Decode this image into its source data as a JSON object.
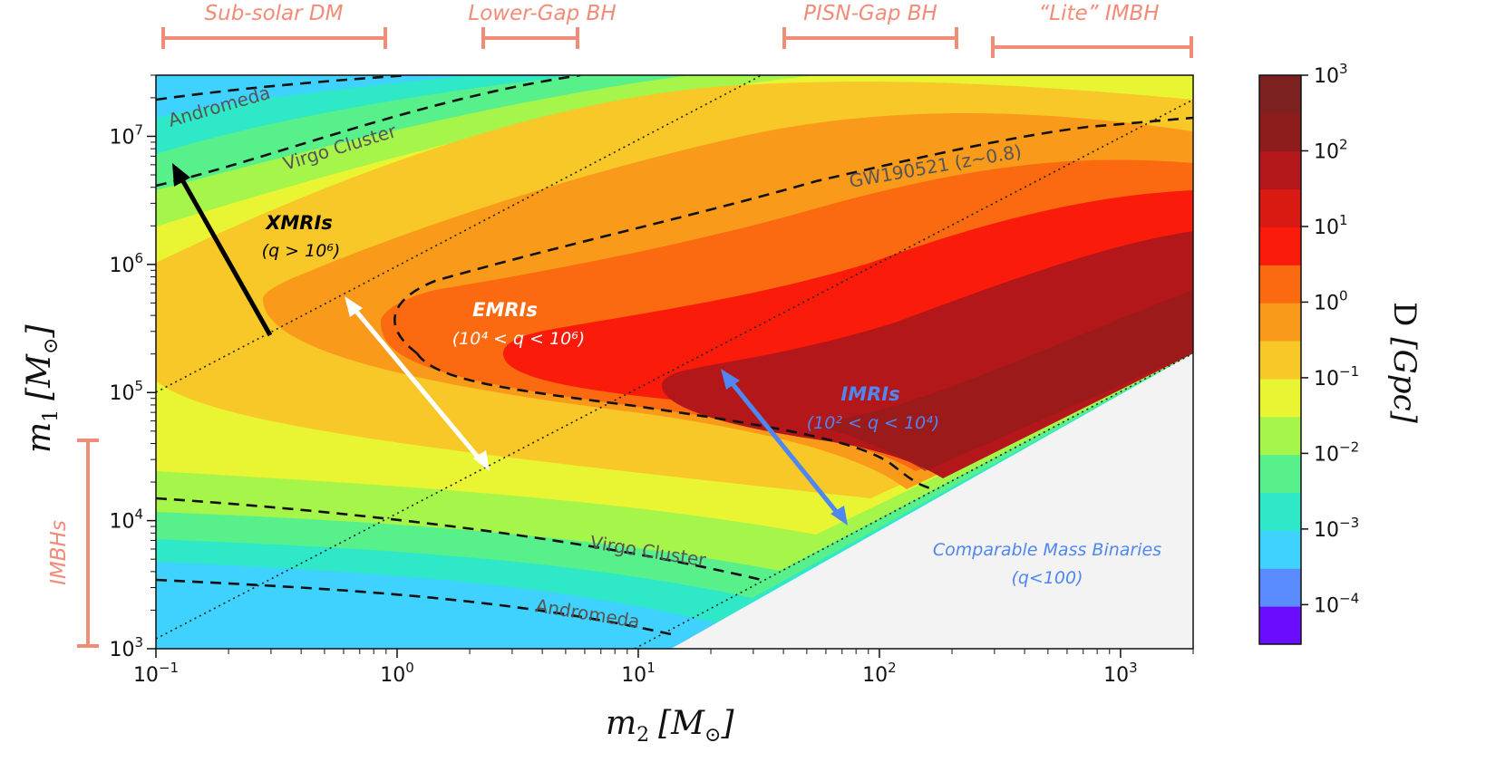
{
  "chart_data": {
    "type": "heatmap",
    "title": "",
    "xlabel": "m",
    "xlabel_sub": "2",
    "xlabel_unit": "[M",
    "xlabel_unit_sub": "⊙",
    "xlabel_close": "]",
    "ylabel": "m",
    "ylabel_sub": "1",
    "ylabel_unit": "[M",
    "ylabel_unit_sub": "⊙",
    "ylabel_close": "]",
    "x_scale": "log",
    "y_scale": "log",
    "xlim": [
      0.1,
      2000
    ],
    "ylim": [
      1000,
      30000000
    ],
    "x_ticks": [
      {
        "base": "10",
        "exp": "−1",
        "value": 0.1
      },
      {
        "base": "10",
        "exp": "0",
        "value": 1
      },
      {
        "base": "10",
        "exp": "1",
        "value": 10
      },
      {
        "base": "10",
        "exp": "2",
        "value": 100
      },
      {
        "base": "10",
        "exp": "3",
        "value": 1000
      }
    ],
    "y_ticks": [
      {
        "base": "10",
        "exp": "3",
        "value": 1000
      },
      {
        "base": "10",
        "exp": "4",
        "value": 10000
      },
      {
        "base": "10",
        "exp": "5",
        "value": 100000
      },
      {
        "base": "10",
        "exp": "6",
        "value": 1000000
      },
      {
        "base": "10",
        "exp": "7",
        "value": 10000000
      }
    ],
    "colorbar": {
      "label_main": "D",
      "label_unit": "[Gpc]",
      "scale": "log",
      "range": [
        3e-05,
        1000
      ],
      "ticks": [
        {
          "base": "10",
          "exp": "3",
          "value": 1000
        },
        {
          "base": "10",
          "exp": "2",
          "value": 100
        },
        {
          "base": "10",
          "exp": "1",
          "value": 10
        },
        {
          "base": "10",
          "exp": "0",
          "value": 1
        },
        {
          "base": "10",
          "exp": "−1",
          "value": 0.1
        },
        {
          "base": "10",
          "exp": "−2",
          "value": 0.01
        },
        {
          "base": "10",
          "exp": "−3",
          "value": 0.001
        },
        {
          "base": "10",
          "exp": "−4",
          "value": 0.0001
        }
      ],
      "levels": [
        "#6a0dff",
        "#5b8cff",
        "#3fd2ff",
        "#2ee8c8",
        "#58f08a",
        "#a6f54a",
        "#e9f533",
        "#f8c728",
        "#f99a1a",
        "#fb6a10",
        "#fb1b0a",
        "#d81a13",
        "#b3171a",
        "#8e1c1c",
        "#7d2020"
      ]
    },
    "range_bars": [
      {
        "label": "Sub-solar DM",
        "axis": "x",
        "from": 0.1,
        "to": 0.95
      },
      {
        "label": "Lower-Gap BH",
        "axis": "x",
        "from": 2.5,
        "to": 6
      },
      {
        "label": "PISN-Gap BH",
        "axis": "x",
        "from": 40,
        "to": 210
      },
      {
        "label": "“Lite” IMBH",
        "axis": "x",
        "from": 300,
        "to": 2000
      },
      {
        "label": "IMBHs",
        "axis": "y",
        "from": 1000,
        "to": 100000
      }
    ],
    "regions": [
      {
        "label": "XMRIs",
        "sub": "(q > 10⁶)",
        "color": "#000000"
      },
      {
        "label": "EMRIs",
        "sub": "(10⁴ < q < 10⁶)",
        "color": "#ffffff"
      },
      {
        "label": "IMRIs",
        "sub": "(10² < q < 10⁴)",
        "color": "#4f86f0"
      },
      {
        "label": "Comparable Mass Binaries",
        "sub": "(q<100)",
        "color": "#4f86f0"
      }
    ],
    "contour_labels": [
      "Andromeda",
      "Virgo Cluster",
      "GW190521 (z~0.8)",
      "Virgo Cluster",
      "Andromeda"
    ]
  }
}
